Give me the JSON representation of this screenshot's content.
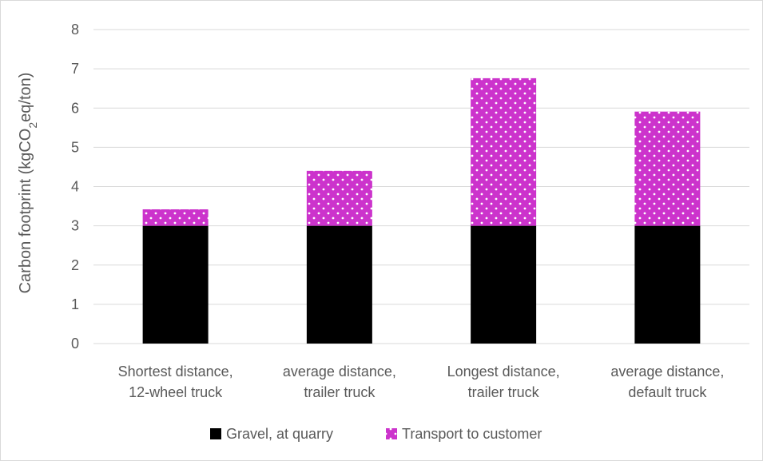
{
  "chart_data": {
    "type": "bar",
    "stacked": true,
    "ylabel_parts": [
      "Carbon footprint (kgCO",
      "2",
      "eq/ton)"
    ],
    "ylim": [
      0,
      8
    ],
    "yticks": [
      0,
      1,
      2,
      3,
      4,
      5,
      6,
      7,
      8
    ],
    "grid": true,
    "legend_position": "bottom",
    "categories": [
      [
        "Shortest distance,",
        "12-wheel truck"
      ],
      [
        "average distance,",
        "trailer truck"
      ],
      [
        "Longest distance,",
        "trailer truck"
      ],
      [
        "average distance,",
        "default truck"
      ]
    ],
    "series": [
      {
        "name": "Gravel, at quarry",
        "color": "#000000",
        "pattern": "solid",
        "values": [
          3.0,
          3.0,
          3.0,
          3.0
        ]
      },
      {
        "name": "Transport to customer",
        "color": "#cc33cc",
        "pattern": "dotted",
        "values": [
          0.42,
          1.4,
          3.76,
          2.91
        ]
      }
    ]
  }
}
